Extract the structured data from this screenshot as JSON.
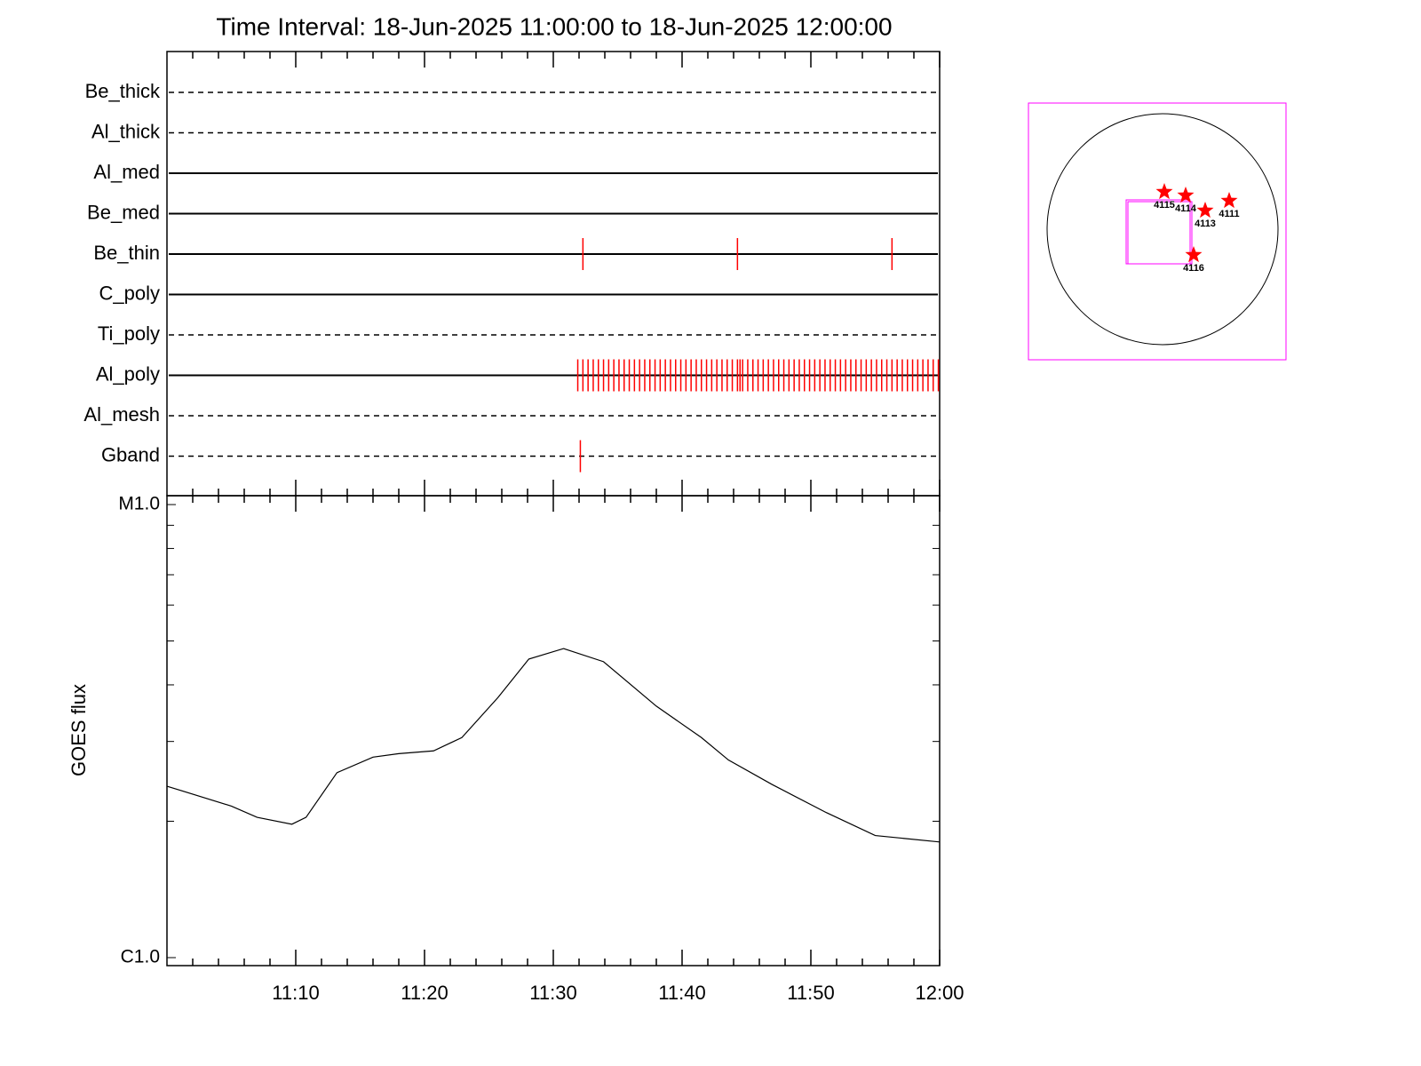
{
  "chart_data": {
    "type": "timeline",
    "title": "Time Interval: 18-Jun-2025 11:00:00 to 18-Jun-2025 12:00:00",
    "xlim": [
      0,
      60
    ],
    "xticks": [
      {
        "value": 10,
        "label": "11:10"
      },
      {
        "value": 20,
        "label": "11:20"
      },
      {
        "value": 30,
        "label": "11:30"
      },
      {
        "value": 40,
        "label": "11:40"
      },
      {
        "value": 50,
        "label": "11:50"
      },
      {
        "value": 60,
        "label": "12:00"
      }
    ],
    "minor_xticks": [
      2,
      4,
      6,
      8,
      12,
      14,
      16,
      18,
      22,
      24,
      26,
      28,
      32,
      34,
      36,
      38,
      42,
      44,
      46,
      48,
      52,
      54,
      56,
      58
    ],
    "event_color": "#ff0000",
    "rows": [
      {
        "name": "Be_thick",
        "style": "dashed",
        "events": []
      },
      {
        "name": "Al_thick",
        "style": "dashed",
        "events": []
      },
      {
        "name": "Al_med",
        "style": "solid",
        "events": []
      },
      {
        "name": "Be_med",
        "style": "solid",
        "events": []
      },
      {
        "name": "Be_thin",
        "style": "solid",
        "events": [
          32.3,
          44.3,
          56.3
        ]
      },
      {
        "name": "C_poly",
        "style": "solid",
        "events": []
      },
      {
        "name": "Ti_poly",
        "style": "dashed",
        "events": []
      },
      {
        "name": "Al_poly",
        "style": "solid",
        "events": [
          31.9,
          32.3,
          32.7,
          33.1,
          33.5,
          33.9,
          34.3,
          34.7,
          35.1,
          35.5,
          35.9,
          36.3,
          36.7,
          37.1,
          37.5,
          37.9,
          38.3,
          38.7,
          39.1,
          39.5,
          39.9,
          40.3,
          40.7,
          41.1,
          41.5,
          41.9,
          42.3,
          42.7,
          43.1,
          43.5,
          43.9,
          44.3,
          44.5,
          44.7,
          45.1,
          45.5,
          45.9,
          46.3,
          46.7,
          47.1,
          47.5,
          47.9,
          48.3,
          48.7,
          49.1,
          49.5,
          49.9,
          50.3,
          50.7,
          51.1,
          51.5,
          51.9,
          52.3,
          52.7,
          53.1,
          53.5,
          53.9,
          54.3,
          54.7,
          55.1,
          55.5,
          55.9,
          56.3,
          56.7,
          57.1,
          57.5,
          57.9,
          58.3,
          58.7,
          59.1,
          59.5,
          59.9
        ]
      },
      {
        "name": "Al_mesh",
        "style": "dashed",
        "events": []
      },
      {
        "name": "Gband",
        "style": "dashed",
        "events": [
          32.1
        ]
      }
    ],
    "goes": {
      "ylabel": "GOES flux",
      "log_scale": true,
      "ylim": [
        1e-06,
        1e-05
      ],
      "yticks": [
        {
          "value": 1e-06,
          "label": "C1.0"
        },
        {
          "value": 1e-05,
          "label": "M1.0"
        }
      ],
      "minor_yticks": [
        2e-06,
        3e-06,
        4e-06,
        5e-06,
        6e-06,
        7e-06,
        8e-06,
        9e-06
      ],
      "color": "#000000",
      "x": [
        0,
        5,
        7,
        9.7,
        10.8,
        13.2,
        16,
        18,
        20.7,
        22.9,
        25.7,
        28.1,
        30.8,
        33.9,
        38,
        41.5,
        43.6,
        47,
        51.2,
        55,
        60
      ],
      "values": [
        2.39e-06,
        2.16e-06,
        2.04e-06,
        1.97e-06,
        2.04e-06,
        2.56e-06,
        2.77e-06,
        2.82e-06,
        2.86e-06,
        3.06e-06,
        3.75e-06,
        4.56e-06,
        4.81e-06,
        4.5e-06,
        3.59e-06,
        3.06e-06,
        2.73e-06,
        2.41e-06,
        2.09e-06,
        1.86e-06,
        1.8e-06
      ]
    },
    "map": {
      "frame_color": "#ff00ff",
      "marker_color": "#ff0000",
      "regions": [
        {
          "label": "4115"
        },
        {
          "label": "4114"
        },
        {
          "label": "4113"
        },
        {
          "label": "4111"
        },
        {
          "label": "4116"
        }
      ]
    }
  }
}
